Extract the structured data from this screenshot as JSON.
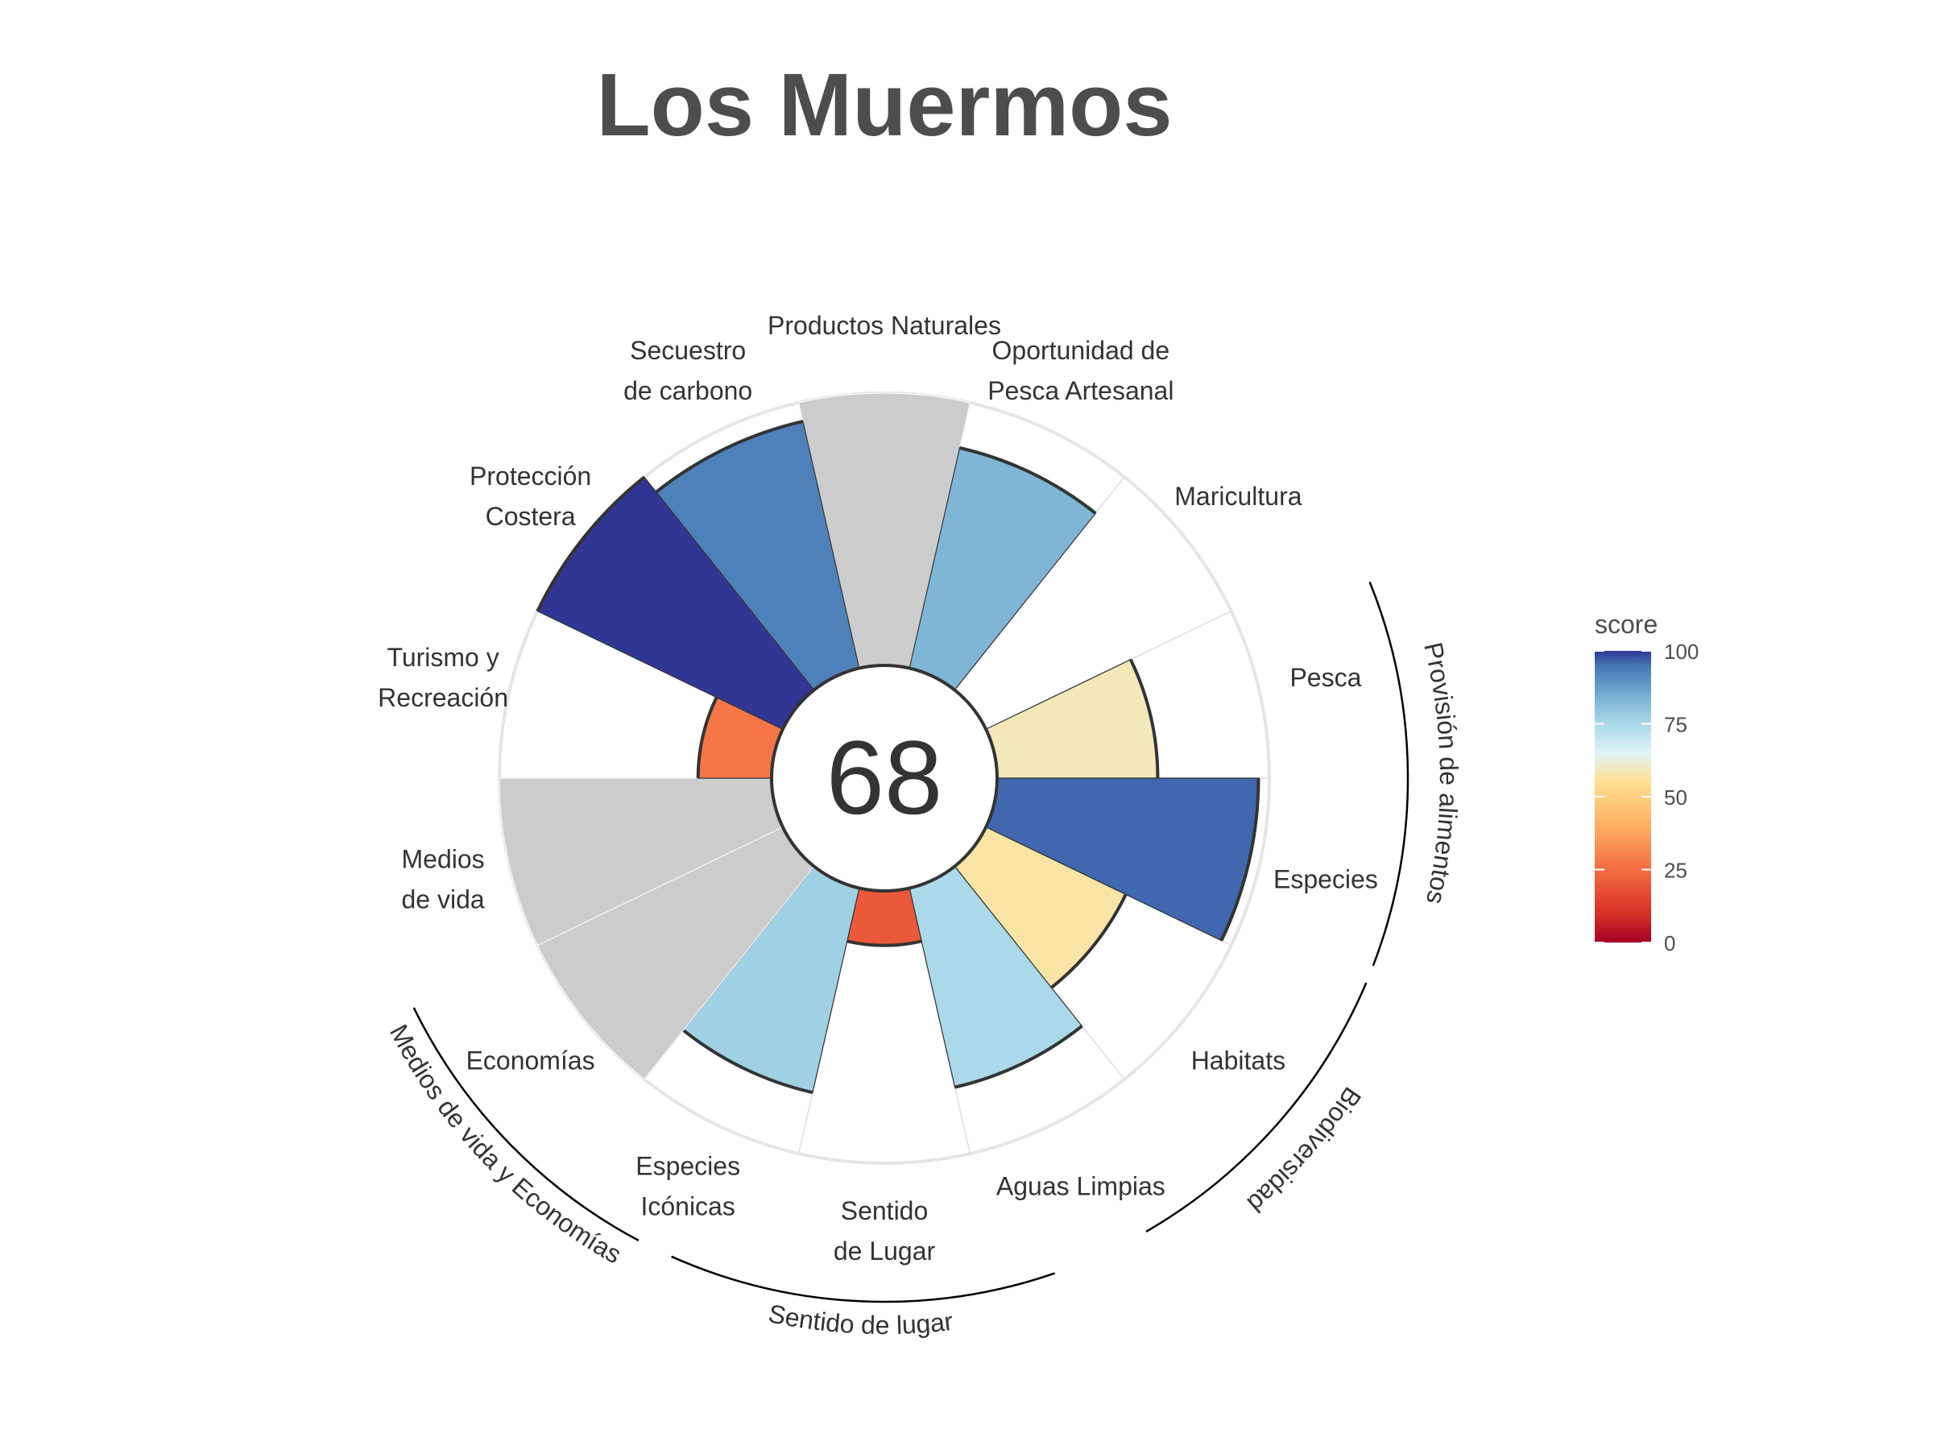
{
  "chart_data": {
    "type": "polar-bar",
    "title": "Los Muermos",
    "center_score": "68",
    "ylim": [
      0,
      100
    ],
    "colors": {
      "na": "#cccccc",
      "outline": "#333333",
      "grid": "#e5e5e5"
    },
    "categories": [
      {
        "lines": [
          "Productos Naturales"
        ],
        "value": 100,
        "na": true
      },
      {
        "lines": [
          "Oportunidad de",
          "Pesca Artesanal"
        ],
        "value": 83
      },
      {
        "lines": [
          "Maricultura"
        ],
        "value": 0
      },
      {
        "lines": [
          "Pesca"
        ],
        "value": 59
      },
      {
        "lines": [
          "Especies"
        ],
        "value": 96
      },
      {
        "lines": [
          "Habitats"
        ],
        "value": 57
      },
      {
        "lines": [
          "Aguas Limpias"
        ],
        "value": 75
      },
      {
        "lines": [
          "Sentido",
          "de Lugar"
        ],
        "value": 20
      },
      {
        "lines": [
          "Especies",
          "Icónicas"
        ],
        "value": 77
      },
      {
        "lines": [
          "Economías"
        ],
        "value": 100,
        "na": true
      },
      {
        "lines": [
          "Medios",
          "de vida"
        ],
        "value": 100,
        "na": true
      },
      {
        "lines": [
          "Turismo y",
          "Recreación"
        ],
        "value": 27
      },
      {
        "lines": [
          "Protección",
          "Costera"
        ],
        "value": 100
      },
      {
        "lines": [
          "Secuestro",
          "de carbono"
        ],
        "value": 93
      }
    ],
    "groups": [
      {
        "label": "Provisión de alimentos"
      },
      {
        "label": "Biodiversidad"
      },
      {
        "label": "Sentido de lugar"
      },
      {
        "label": "Medios de vida y Economías"
      }
    ],
    "legend": {
      "title": "score",
      "ticks": [
        "0",
        "25",
        "50",
        "75",
        "100"
      ],
      "tick_values": [
        0,
        25,
        50,
        75,
        100
      ],
      "stops": [
        {
          "v": 0,
          "color": "#a50026"
        },
        {
          "v": 10,
          "color": "#d73027"
        },
        {
          "v": 25,
          "color": "#f46d43"
        },
        {
          "v": 40,
          "color": "#fdae61"
        },
        {
          "v": 55,
          "color": "#fee090"
        },
        {
          "v": 65,
          "color": "#e0f3f8"
        },
        {
          "v": 75,
          "color": "#abd9e9"
        },
        {
          "v": 85,
          "color": "#74add1"
        },
        {
          "v": 95,
          "color": "#4575b4"
        },
        {
          "v": 100,
          "color": "#313695"
        }
      ]
    }
  }
}
